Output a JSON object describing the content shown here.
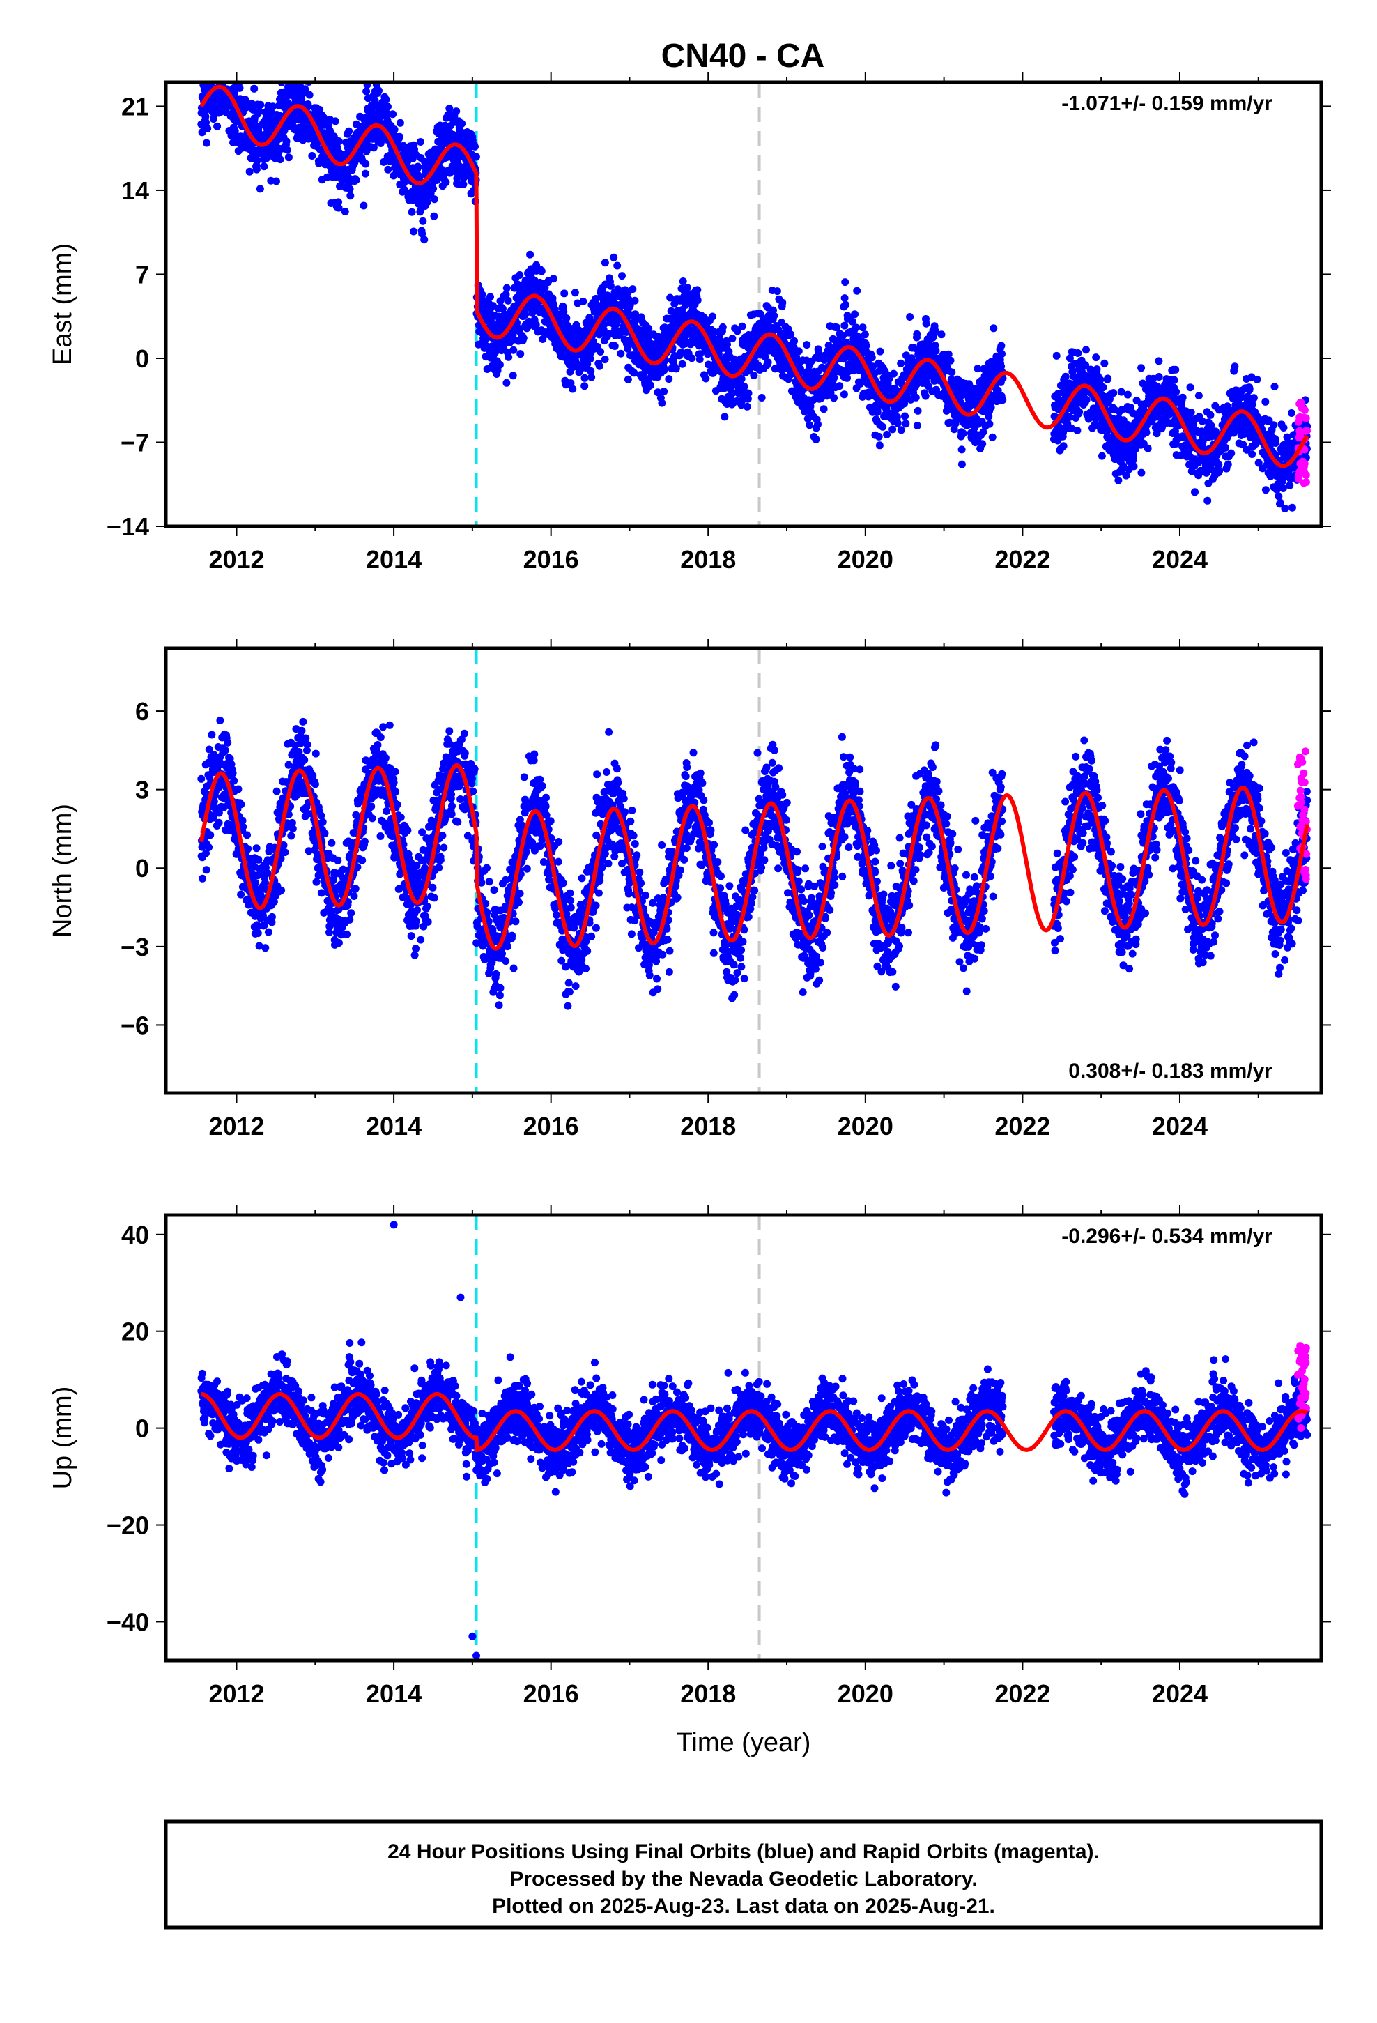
{
  "title": "CN40 - CA",
  "colors": {
    "final_orbits": "#0000ff",
    "rapid_orbits": "#ff00ff",
    "model": "#ff0000",
    "equipment_change": "#00e5ee",
    "other_event": "#c8c8c8"
  },
  "footer": {
    "line1": "24 Hour Positions Using Final Orbits (blue) and Rapid Orbits (magenta).",
    "line2": "Processed by the Nevada Geodetic Laboratory.",
    "line3": "Plotted on 2025-Aug-23. Last data on 2025-Aug-21."
  },
  "chart_data": [
    {
      "type": "scatter",
      "panel": "east",
      "ylabel": "East (mm)",
      "xlabel": "",
      "rate_text": "-1.071+/- 0.159 mm/yr",
      "rate_position": "top-right",
      "xlim": [
        2011.1,
        2025.8
      ],
      "ylim": [
        -14,
        23
      ],
      "xticks": [
        "2012",
        "2014",
        "2016",
        "2018",
        "2020",
        "2022",
        "2024"
      ],
      "yticks": [
        "21",
        "14",
        "7",
        "0",
        "-7",
        "-14"
      ],
      "ytick_values": [
        21,
        14,
        7,
        0,
        -7,
        -14
      ],
      "events": [
        {
          "x": 2015.05,
          "color": "cyan"
        },
        {
          "x": 2018.65,
          "color": "gray"
        }
      ],
      "segments": [
        {
          "start": 2011.55,
          "end": 2015.05,
          "offset": 21.0,
          "slope": -1.6,
          "amp": 2.0,
          "phase": 0.55
        },
        {
          "start": 2015.05,
          "end": 2025.62,
          "offset": 4.0,
          "slope": -1.07,
          "amp": 2.0,
          "phase": 0.55
        }
      ],
      "noise": 1.8,
      "gaps": [
        [
          2021.75,
          2022.4
        ]
      ],
      "rapid": {
        "start": 2025.5,
        "end": 2025.62,
        "center": -7.0,
        "spread": 3.5
      }
    },
    {
      "type": "scatter",
      "panel": "north",
      "ylabel": "North (mm)",
      "xlabel": "",
      "rate_text": "0.308+/- 0.183 mm/yr",
      "rate_position": "bottom-right",
      "xlim": [
        2011.1,
        2025.8
      ],
      "ylim": [
        -8.6,
        8.4
      ],
      "xticks": [
        "2012",
        "2014",
        "2016",
        "2018",
        "2020",
        "2022",
        "2024"
      ],
      "yticks": [
        "6",
        "3",
        "0",
        "-3",
        "-6"
      ],
      "ytick_values": [
        6,
        3,
        0,
        -3,
        -6
      ],
      "events": [
        {
          "x": 2015.05,
          "color": "cyan"
        },
        {
          "x": 2018.65,
          "color": "gray"
        }
      ],
      "segments": [
        {
          "start": 2011.55,
          "end": 2015.05,
          "offset": 1.0,
          "slope": 0.1,
          "amp": 2.6,
          "phase": 0.55
        },
        {
          "start": 2015.05,
          "end": 2025.62,
          "offset": -0.5,
          "slope": 0.1,
          "amp": 2.6,
          "phase": 0.55
        }
      ],
      "noise": 1.1,
      "gaps": [
        [
          2021.75,
          2022.4
        ]
      ],
      "rapid": {
        "start": 2025.5,
        "end": 2025.62,
        "center": 2.0,
        "spread": 2.5
      }
    },
    {
      "type": "scatter",
      "panel": "up",
      "ylabel": "Up (mm)",
      "xlabel": "Time (year)",
      "rate_text": "-0.296+/- 0.534 mm/yr",
      "rate_position": "top-right",
      "xlim": [
        2011.1,
        2025.8
      ],
      "ylim": [
        -48,
        44
      ],
      "xticks": [
        "2012",
        "2014",
        "2016",
        "2018",
        "2020",
        "2022",
        "2024"
      ],
      "yticks": [
        "40",
        "20",
        "0",
        "-20",
        "-40"
      ],
      "ytick_values": [
        40,
        20,
        0,
        -20,
        -40
      ],
      "events": [
        {
          "x": 2015.05,
          "color": "cyan"
        },
        {
          "x": 2018.65,
          "color": "gray"
        }
      ],
      "segments": [
        {
          "start": 2011.55,
          "end": 2015.05,
          "offset": 2.5,
          "slope": 0.0,
          "amp": 4.5,
          "phase": 0.3
        },
        {
          "start": 2015.05,
          "end": 2025.62,
          "offset": -0.5,
          "slope": 0.0,
          "amp": 4.0,
          "phase": 0.3
        }
      ],
      "noise": 3.8,
      "gaps": [
        [
          2021.75,
          2022.4
        ]
      ],
      "outliers": [
        [
          2014.0,
          42
        ],
        [
          2015.05,
          -47
        ],
        [
          2015.0,
          -43
        ],
        [
          2014.85,
          27
        ]
      ],
      "rapid": {
        "start": 2025.5,
        "end": 2025.62,
        "center": 8.0,
        "spread": 9.0
      }
    }
  ]
}
